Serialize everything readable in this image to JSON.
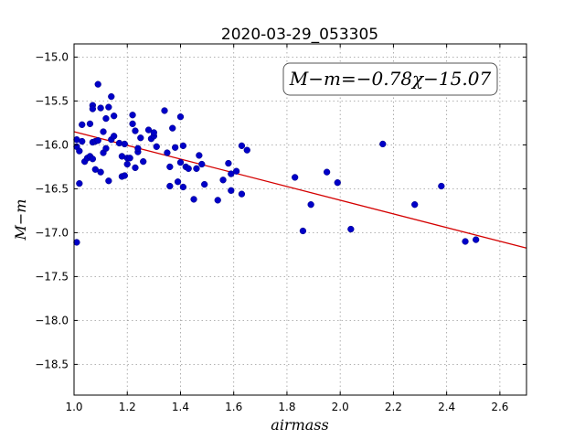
{
  "chart_data": {
    "type": "scatter",
    "title": "2020-03-29_053305",
    "xlabel": "airmass",
    "ylabel": "M−m",
    "xlim": [
      1.0,
      2.7
    ],
    "ylim": [
      -18.85,
      -14.85
    ],
    "y_inverted": true,
    "grid": true,
    "x_ticks": [
      1.0,
      1.2,
      1.4,
      1.6,
      1.8,
      2.0,
      2.2,
      2.4,
      2.6
    ],
    "x_tick_labels": [
      "1.0",
      "1.2",
      "1.4",
      "1.6",
      "1.8",
      "2.0",
      "2.2",
      "2.4",
      "2.6"
    ],
    "y_ticks": [
      -15.0,
      -15.5,
      -16.0,
      -16.5,
      -17.0,
      -17.5,
      -18.0,
      -18.5
    ],
    "y_tick_labels": [
      "−15.0",
      "−15.5",
      "−16.0",
      "−16.5",
      "−17.0",
      "−17.5",
      "−18.0",
      "−18.5"
    ],
    "annotation": "M−m=−0.78χ−15.07",
    "fit": {
      "slope": -0.78,
      "intercept": -15.07
    },
    "series": [
      {
        "points": [
          [
            1.01,
            -17.11
          ],
          [
            1.01,
            -15.94
          ],
          [
            1.01,
            -16.02
          ],
          [
            1.02,
            -16.44
          ],
          [
            1.02,
            -16.07
          ],
          [
            1.03,
            -15.96
          ],
          [
            1.03,
            -15.77
          ],
          [
            1.04,
            -16.19
          ],
          [
            1.05,
            -16.15
          ],
          [
            1.06,
            -15.76
          ],
          [
            1.06,
            -16.13
          ],
          [
            1.07,
            -15.55
          ],
          [
            1.07,
            -15.59
          ],
          [
            1.07,
            -15.97
          ],
          [
            1.07,
            -16.16
          ],
          [
            1.08,
            -15.96
          ],
          [
            1.08,
            -16.28
          ],
          [
            1.09,
            -15.95
          ],
          [
            1.09,
            -15.31
          ],
          [
            1.1,
            -16.31
          ],
          [
            1.1,
            -15.58
          ],
          [
            1.11,
            -16.09
          ],
          [
            1.11,
            -15.85
          ],
          [
            1.12,
            -15.7
          ],
          [
            1.12,
            -16.04
          ],
          [
            1.13,
            -16.41
          ],
          [
            1.13,
            -15.57
          ],
          [
            1.14,
            -15.45
          ],
          [
            1.14,
            -15.94
          ],
          [
            1.15,
            -15.67
          ],
          [
            1.15,
            -15.9
          ],
          [
            1.17,
            -15.98
          ],
          [
            1.18,
            -16.13
          ],
          [
            1.18,
            -16.36
          ],
          [
            1.19,
            -15.99
          ],
          [
            1.19,
            -16.35
          ],
          [
            1.2,
            -16.15
          ],
          [
            1.2,
            -16.22
          ],
          [
            1.21,
            -16.15
          ],
          [
            1.22,
            -15.76
          ],
          [
            1.22,
            -15.66
          ],
          [
            1.23,
            -15.84
          ],
          [
            1.23,
            -16.26
          ],
          [
            1.24,
            -16.08
          ],
          [
            1.24,
            -16.04
          ],
          [
            1.25,
            -15.92
          ],
          [
            1.26,
            -16.19
          ],
          [
            1.28,
            -15.83
          ],
          [
            1.29,
            -15.93
          ],
          [
            1.3,
            -15.9
          ],
          [
            1.3,
            -15.86
          ],
          [
            1.31,
            -16.02
          ],
          [
            1.34,
            -15.61
          ],
          [
            1.35,
            -16.09
          ],
          [
            1.36,
            -16.47
          ],
          [
            1.36,
            -16.25
          ],
          [
            1.37,
            -15.81
          ],
          [
            1.38,
            -16.03
          ],
          [
            1.39,
            -16.42
          ],
          [
            1.4,
            -15.68
          ],
          [
            1.4,
            -16.2
          ],
          [
            1.41,
            -16.01
          ],
          [
            1.41,
            -16.48
          ],
          [
            1.42,
            -16.25
          ],
          [
            1.43,
            -16.27
          ],
          [
            1.45,
            -16.62
          ],
          [
            1.46,
            -16.27
          ],
          [
            1.47,
            -16.12
          ],
          [
            1.48,
            -16.22
          ],
          [
            1.49,
            -16.45
          ],
          [
            1.54,
            -16.63
          ],
          [
            1.56,
            -16.4
          ],
          [
            1.58,
            -16.21
          ],
          [
            1.59,
            -16.33
          ],
          [
            1.59,
            -16.52
          ],
          [
            1.61,
            -16.3
          ],
          [
            1.63,
            -16.01
          ],
          [
            1.63,
            -16.56
          ],
          [
            1.65,
            -16.06
          ],
          [
            1.83,
            -16.37
          ],
          [
            1.86,
            -16.98
          ],
          [
            1.89,
            -16.68
          ],
          [
            1.95,
            -16.31
          ],
          [
            1.99,
            -16.43
          ],
          [
            2.04,
            -16.96
          ],
          [
            2.16,
            -15.99
          ],
          [
            2.28,
            -16.68
          ],
          [
            2.38,
            -16.47
          ],
          [
            2.47,
            -17.1
          ],
          [
            2.51,
            -17.08
          ]
        ]
      }
    ]
  }
}
